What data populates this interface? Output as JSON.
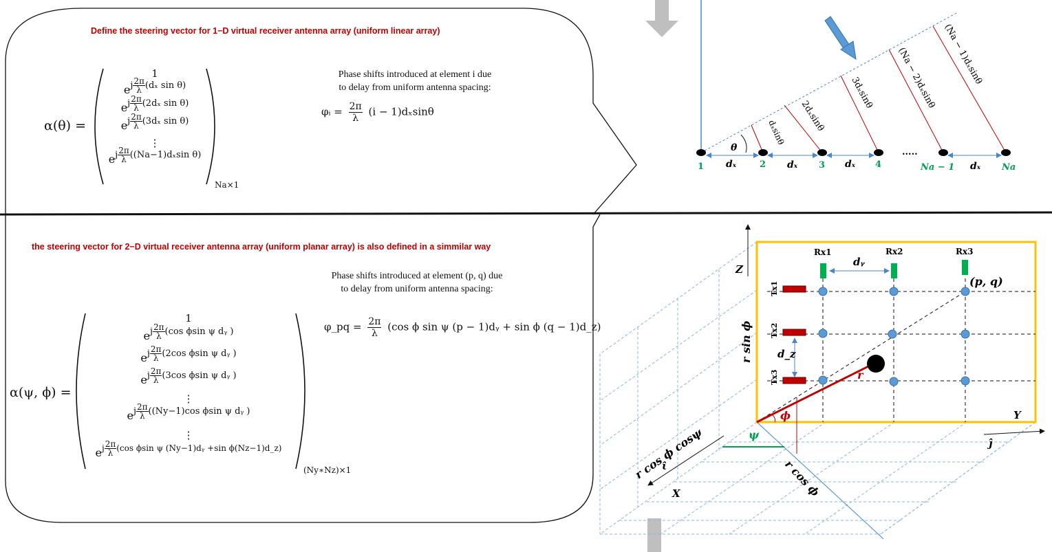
{
  "top": {
    "title": "Define the steering vector for 1−D virtual receiver antenna array (uniform linear array)",
    "lhs": "α(θ) =",
    "rows": [
      "1",
      "(dₓ sin θ)",
      "(2dₓ sin θ)",
      "(3dₓ sin θ)",
      "⋮",
      "((Na−1)dₓsin θ)"
    ],
    "size": "Na×1",
    "phase_note_line1": "Phase shifts introduced  at element i due",
    "phase_note_line2": "to delay from  uniform antenna spacing:",
    "phase_formula_lhs": "φᵢ =",
    "phase_formula_rhs": "(i − 1)dₓsinθ"
  },
  "bottom": {
    "title": "the steering vector for 2−D virtual receiver antenna array (uniform planar array) is also defined in a simmilar way",
    "lhs": "α(ψ, ϕ) =",
    "rows": [
      "1",
      "(cos ϕsin ψ dᵧ )",
      "(2cos ϕsin ψ dᵧ )",
      "(3cos ϕsin ψ dᵧ )",
      "⋮",
      "((Ny−1)cos ϕsin ψ dᵧ )",
      "⋮",
      "(cos ϕsin ψ (Ny−1)dᵧ +sin ϕ(Nz−1)d_z)"
    ],
    "size": "(Ny∗Nz)×1",
    "phase_note_line1": "Phase shifts introduced  at element (p, q) due",
    "phase_note_line2": "to delay from  uniform antenna spacing:",
    "phase_formula_lhs": "φ_pq =",
    "phase_formula_rhs": "(cos ϕ sin ψ (p − 1)dᵧ  + sin ϕ (q − 1)d_z)"
  },
  "common": {
    "exp_base": "e",
    "exp_j": "j",
    "two_pi": "2π",
    "lambda": "λ"
  },
  "ula": {
    "theta": "θ",
    "element_labels": [
      "1",
      "2",
      "3",
      "4",
      "Na − 1",
      "Na"
    ],
    "spacing_label": "dₓ",
    "dots": ".....",
    "path_labels": [
      "dₓsinθ",
      "2dₓsinθ",
      "3dₓsinθ",
      "(Na − 2)dₓsinθ",
      "(Na − 1)dₓsinθ"
    ]
  },
  "upa": {
    "rx_labels": [
      "Rx1",
      "Rx2",
      "Rx3"
    ],
    "tx_labels": [
      "Tx1",
      "Tx2",
      "Tx3"
    ],
    "dy": "dᵧ",
    "dz": "d_z",
    "pq": "(p, q)",
    "r": "r",
    "phi": "ϕ",
    "psi": "ψ",
    "Z": "Z",
    "Y": "Y",
    "X": "X",
    "j_hat": "ĵ",
    "i_hat": "ι̂",
    "r_sin_phi": "r sin ϕ",
    "r_cos_phi": "r cos ϕ",
    "r_cos_phi_cos_psi": "r cos ϕ cosψ"
  },
  "colors": {
    "red_title": "#c00000",
    "green_label": "#00a050",
    "blue_line": "#4a86c8",
    "red_line": "#c00000",
    "frame_orange": "#ffc000",
    "tx_red": "#c00000",
    "rx_green": "#00b050",
    "node_blue": "#5b9bd5",
    "gray_arrow": "#bfbfbf"
  }
}
